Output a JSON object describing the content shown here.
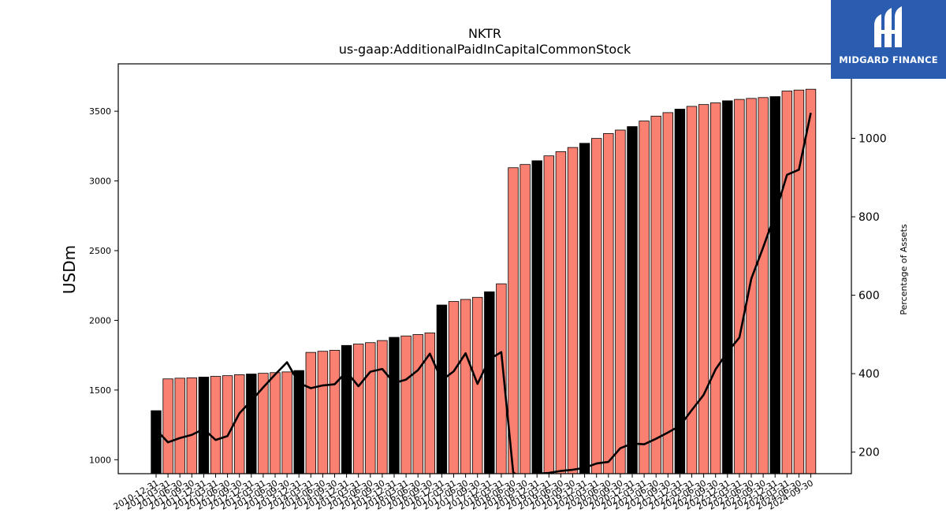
{
  "chart_data": {
    "type": "bar",
    "title": "NKTR",
    "subtitle": "us-gaap:AdditionalPaidInCapitalCommonStock",
    "ylabel": "USDm",
    "y2label": "Percentage of Assets",
    "ylim": [
      900,
      3840
    ],
    "y2lim": [
      145,
      1190
    ],
    "yticks": [
      1000,
      1500,
      2000,
      2500,
      3000,
      3500
    ],
    "y2ticks": [
      200,
      400,
      600,
      800,
      1000
    ],
    "categories": [
      "2010-12-31",
      "2011-03-31",
      "2011-06-30",
      "2011-09-30",
      "2011-12-31",
      "2012-03-31",
      "2012-06-30",
      "2012-09-30",
      "2012-12-31",
      "2013-03-31",
      "2013-06-30",
      "2013-09-30",
      "2013-12-31",
      "2014-03-31",
      "2014-06-30",
      "2014-09-30",
      "2014-12-31",
      "2015-03-31",
      "2015-06-30",
      "2015-09-30",
      "2015-12-31",
      "2016-03-31",
      "2016-06-30",
      "2016-09-30",
      "2016-12-31",
      "2017-03-31",
      "2017-06-30",
      "2017-09-30",
      "2017-12-31",
      "2018-03-31",
      "2018-06-30",
      "2018-09-30",
      "2018-12-31",
      "2019-03-31",
      "2019-06-30",
      "2019-09-30",
      "2019-12-31",
      "2020-03-31",
      "2020-06-30",
      "2020-09-30",
      "2020-12-31",
      "2021-03-31",
      "2021-06-30",
      "2021-09-30",
      "2021-12-31",
      "2022-03-31",
      "2022-06-30",
      "2022-09-30",
      "2022-12-31",
      "2023-03-31",
      "2023-06-30",
      "2023-09-30",
      "2023-12-31",
      "2024-03-31",
      "2024-06-30",
      "2024-09-30"
    ],
    "bar_values": [
      1352,
      1580,
      1585,
      1588,
      1593,
      1598,
      1603,
      1610,
      1615,
      1620,
      1625,
      1630,
      1640,
      1770,
      1778,
      1785,
      1820,
      1830,
      1840,
      1855,
      1878,
      1888,
      1898,
      1910,
      2110,
      2135,
      2150,
      2165,
      2205,
      2262,
      3095,
      3118,
      3145,
      3180,
      3210,
      3240,
      3270,
      3305,
      3340,
      3365,
      3390,
      3430,
      3465,
      3490,
      3515,
      3535,
      3548,
      3560,
      3575,
      3585,
      3592,
      3598,
      3605,
      3645,
      3652,
      3658
    ],
    "highlight_indices": [
      0,
      4,
      8,
      12,
      16,
      20,
      24,
      28,
      32,
      36,
      40,
      44,
      48,
      52
    ],
    "series": [
      {
        "name": "Percentage of Assets",
        "axis": "right",
        "type": "line",
        "values": [
          257,
          225,
          236,
          244,
          259,
          231,
          241,
          299,
          331,
          365,
          398,
          429,
          376,
          363,
          370,
          373,
          405,
          368,
          405,
          412,
          376,
          385,
          409,
          451,
          383,
          406,
          452,
          374,
          437,
          455,
          148,
          128,
          145,
          147,
          152,
          155,
          160,
          171,
          175,
          210,
          222,
          220,
          234,
          250,
          267,
          307,
          346,
          411,
          455,
          492,
          642,
          722,
          807,
          907,
          920,
          1065
        ]
      }
    ],
    "colors": {
      "bar": "#fa8072",
      "bar_highlight": "#000000",
      "line": "#000000",
      "bar_edge": "#000000"
    }
  },
  "logo": {
    "text": "MIDGARD FINANCE",
    "background": "#2a5db0",
    "color": "#ffffff"
  }
}
